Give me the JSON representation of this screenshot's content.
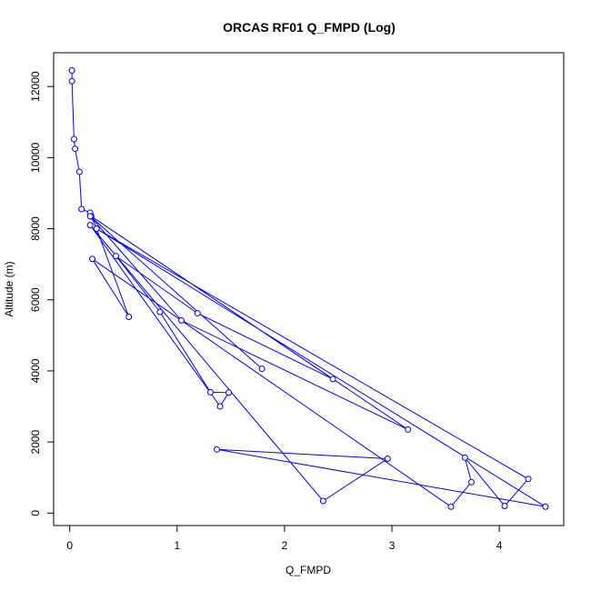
{
  "chart_data": {
    "type": "line",
    "title": "ORCAS RF01 Q_FMPD (Log)",
    "xlabel": "Q_FMPD",
    "ylabel": "Altitude (m)",
    "xlim": [
      -0.15,
      4.6
    ],
    "ylim": [
      -350,
      12950
    ],
    "x_ticks": [
      0,
      1,
      2,
      3,
      4
    ],
    "y_ticks": [
      0,
      2000,
      4000,
      6000,
      8000,
      10000,
      12000
    ],
    "grid": false,
    "legend": "none",
    "line_color": "#0000ff",
    "marker": "open-circle",
    "series": [
      {
        "points": [
          [
            0.02,
            12450
          ],
          [
            0.02,
            12450
          ],
          [
            0.02,
            12150
          ],
          [
            0.04,
            10520
          ],
          [
            0.05,
            10250
          ],
          [
            0.09,
            9600
          ],
          [
            0.11,
            8550
          ],
          [
            0.19,
            8450
          ],
          [
            0.2,
            8350
          ],
          [
            0.25,
            8000
          ],
          [
            4.27,
            960
          ],
          [
            4.05,
            200
          ],
          [
            3.68,
            1560
          ],
          [
            3.74,
            870
          ],
          [
            3.55,
            180
          ],
          [
            0.21,
            7150
          ],
          [
            0.55,
            5520
          ],
          [
            0.25,
            8000
          ],
          [
            4.43,
            180
          ],
          [
            1.37,
            1790
          ],
          [
            2.96,
            1530
          ],
          [
            2.36,
            340
          ],
          [
            0.19,
            8100
          ],
          [
            1.4,
            3000
          ],
          [
            1.48,
            3390
          ],
          [
            1.31,
            3400
          ],
          [
            0.84,
            5660
          ],
          [
            0.43,
            7230
          ],
          [
            1.19,
            5620
          ],
          [
            2.45,
            3770
          ],
          [
            0.2,
            8350
          ],
          [
            3.15,
            2350
          ],
          [
            1.04,
            5420
          ],
          [
            0.19,
            8350
          ],
          [
            1.79,
            4060
          ]
        ]
      }
    ]
  }
}
